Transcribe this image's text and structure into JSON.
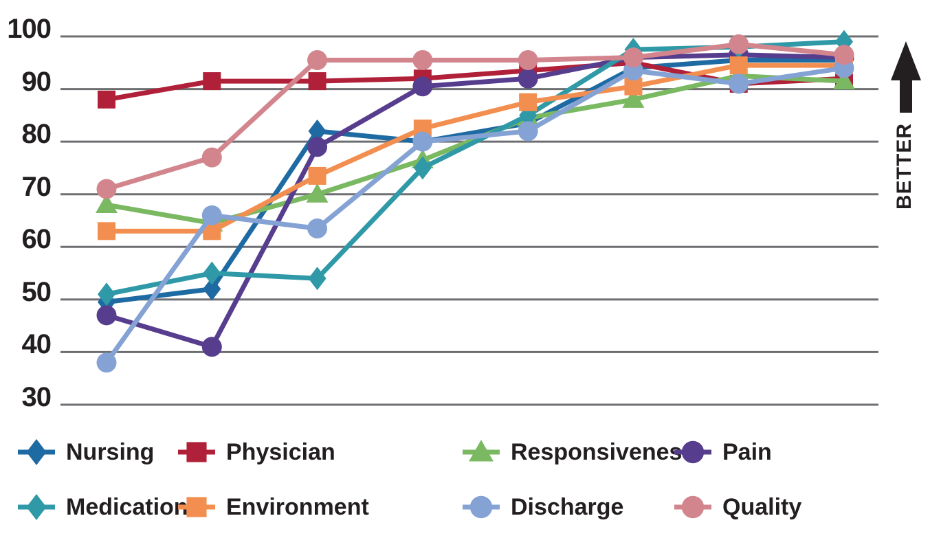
{
  "chart_data": {
    "type": "line",
    "title": "",
    "xlabel": "",
    "ylabel": "",
    "x_count": 8,
    "yticks": [
      100,
      90,
      80,
      70,
      60,
      50,
      40,
      30
    ],
    "ylim": [
      30,
      100
    ],
    "grid": "horizontal",
    "grid_color": "#6d6e71",
    "text_color": "#231f20",
    "legend_position": "bottom",
    "better_label": "BETTER",
    "series": [
      {
        "name": "Nursing",
        "color": "#1e6aa2",
        "marker": "diamond",
        "values": [
          49.5,
          52,
          82,
          80,
          83.5,
          94,
          95.5,
          95.5
        ]
      },
      {
        "name": "Physician",
        "color": "#b02038",
        "marker": "square",
        "values": [
          88,
          91.5,
          91.5,
          92,
          93.5,
          95,
          91,
          92
        ]
      },
      {
        "name": "Responsiveness",
        "color": "#7ab861",
        "marker": "triangle",
        "values": [
          68,
          64.5,
          70,
          76.5,
          84.5,
          88,
          92.5,
          91.5
        ]
      },
      {
        "name": "Pain",
        "color": "#573d8e",
        "marker": "circle",
        "values": [
          47,
          41,
          79,
          90.5,
          92,
          96,
          96.5,
          96
        ]
      },
      {
        "name": "Medications",
        "color": "#2f99a7",
        "marker": "diamond",
        "values": [
          51,
          55,
          54,
          75,
          85,
          97.5,
          98,
          99
        ]
      },
      {
        "name": "Environment",
        "color": "#f28f50",
        "marker": "square",
        "values": [
          63,
          63,
          73.5,
          82.5,
          87.5,
          90.5,
          94.5,
          94.5
        ]
      },
      {
        "name": "Discharge",
        "color": "#84a2d4",
        "marker": "circle",
        "values": [
          38,
          66,
          63.5,
          80,
          82,
          93.5,
          91,
          94
        ]
      },
      {
        "name": "Quality",
        "color": "#d2858d",
        "marker": "circle",
        "values": [
          71,
          77,
          95.5,
          95.5,
          95.5,
          96,
          98.5,
          96.5
        ]
      }
    ]
  }
}
